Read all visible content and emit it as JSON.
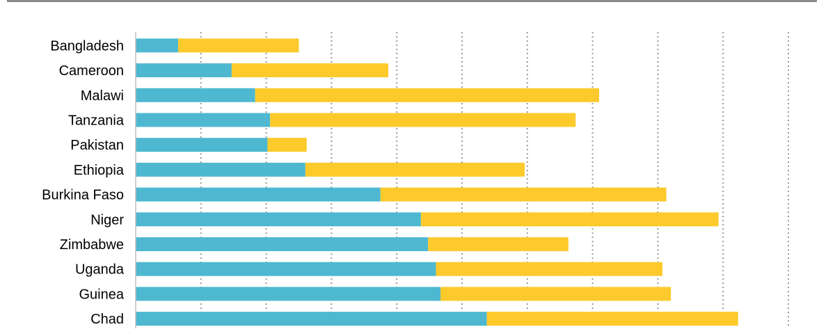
{
  "chart_data": {
    "type": "bar",
    "orientation": "horizontal",
    "stacked": true,
    "categories": [
      "Bangladesh",
      "Cameroon",
      "Malawi",
      "Tanzania",
      "Pakistan",
      "Ethiopia",
      "Burkina Faso",
      "Niger",
      "Zimbabwe",
      "Uganda",
      "Guinea",
      "Chad"
    ],
    "series": [
      {
        "color": "#4fb8d1",
        "values": [
          6.5,
          14.7,
          18.3,
          20.6,
          20.2,
          26.0,
          37.5,
          43.7,
          44.8,
          46.0,
          46.7,
          53.8
        ]
      },
      {
        "color": "#fdca2c",
        "values": [
          18.5,
          24.0,
          52.7,
          46.8,
          6.0,
          33.6,
          43.8,
          45.6,
          21.5,
          34.7,
          35.3,
          38.5
        ]
      }
    ],
    "xlim": [
      0,
      100
    ],
    "x_grid_step": 10,
    "grid": "vertical dotted",
    "title": "",
    "xlabel": "",
    "ylabel": ""
  }
}
